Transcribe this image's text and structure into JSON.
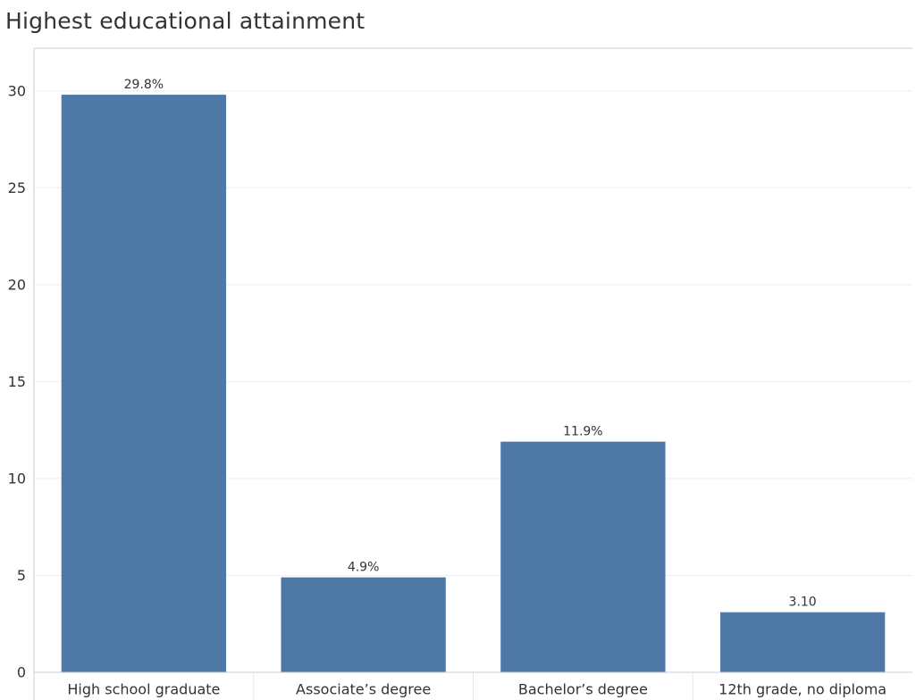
{
  "chart_data": {
    "type": "bar",
    "title": "Highest educational attainment",
    "xlabel": "",
    "ylabel": "",
    "categories": [
      "High school graduate",
      "Associate’s degree",
      "Bachelor’s degree",
      "12th grade, no diploma"
    ],
    "values": [
      29.8,
      4.9,
      11.9,
      3.1
    ],
    "data_labels": [
      "29.8%",
      "4.9%",
      "11.9%",
      "3.10"
    ],
    "yticks": [
      0,
      5,
      10,
      15,
      20,
      25,
      30
    ],
    "ylim": [
      0,
      32.2
    ],
    "grid": true,
    "legend": "none",
    "bar_color": "#4e79a7",
    "gridline_color": "#eeeeee",
    "axis_color": "#cccccc",
    "divider_color": "#e8e8e8"
  }
}
